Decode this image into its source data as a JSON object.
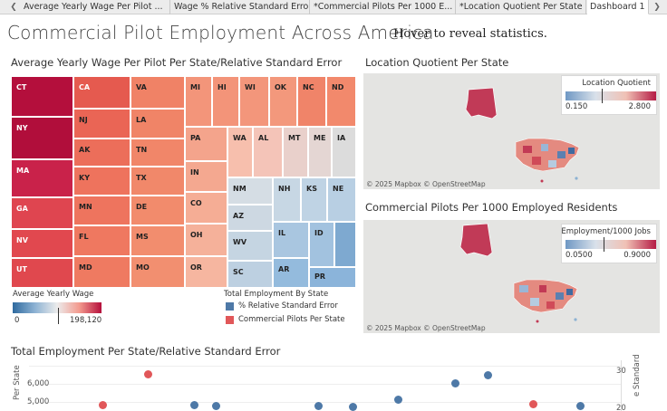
{
  "tabs": [
    {
      "label": "Average Yearly Wage Per Pilot ...",
      "active": false
    },
    {
      "label": "Wage % Relative Standard Error",
      "active": false
    },
    {
      "label": "*Commercial Pilots Per 1000 E...",
      "active": false
    },
    {
      "label": "*Location Quotient Per State",
      "active": false
    },
    {
      "label": "Dashboard 1",
      "active": true
    }
  ],
  "title": "Commercial Pilot Employment Across America",
  "hover_note": "Hover to reveal statistics.",
  "treemap": {
    "title": "Average Yearly Wage Per Pilot Per State/Relative Standard Error",
    "cells": [
      "CT",
      "NY",
      "MA",
      "GA",
      "NV",
      "UT",
      "CA",
      "NJ",
      "AK",
      "KY",
      "MN",
      "FL",
      "MD",
      "VA",
      "LA",
      "TN",
      "TX",
      "DE",
      "MS",
      "MO",
      "MI",
      "HI",
      "WI",
      "OK",
      "NC",
      "ND",
      "PA",
      "IN",
      "CO",
      "OH",
      "OR",
      "WA",
      "AL",
      "MT",
      "ME",
      "IA",
      "NM",
      "NH",
      "KS",
      "NE",
      "AZ",
      "WV",
      "SC",
      "IL",
      "ID",
      "AR",
      "PR"
    ]
  },
  "wage_legend": {
    "title": "Average Yearly Wage",
    "min": "0",
    "max": "198,120"
  },
  "employment_legend": {
    "title": "Total Employment By State",
    "items": [
      {
        "label": "% Relative Standard Error",
        "color": "#4e79a7"
      },
      {
        "label": "Commercial Pilots Per State",
        "color": "#e15759"
      }
    ]
  },
  "lq_map": {
    "title": "Location Quotient Per State",
    "legend_title": "Location Quotient",
    "min": "0.150",
    "max": "2.800",
    "credit": "© 2025 Mapbox  © OpenStreetMap"
  },
  "cp_map": {
    "title": "Commercial Pilots Per 1000 Employed Residents",
    "legend_title": "Employment/1000 Jobs",
    "min": "0.0500",
    "max": "0.9000",
    "credit": "© 2025 Mapbox  © OpenStreetMap"
  },
  "scatter": {
    "title": "Total Employment Per State/Relative Standard Error",
    "left_axis_label": "Per State",
    "right_axis_label": "e Standard",
    "left_ticks": [
      "6,000",
      "5,000"
    ],
    "right_ticks": [
      "30",
      "20"
    ]
  },
  "chart_data": {
    "type": "scatter",
    "title": "Total Employment Per State/Relative Standard Error",
    "ylabel": "Per State",
    "y2label": "e Standard",
    "y_ticks": [
      5000,
      6000
    ],
    "y2_ticks": [
      20,
      30
    ],
    "series": [
      {
        "name": "Commercial Pilots Per State",
        "color": "#e15759",
        "values": [
          4850,
          6550,
          4900
        ]
      },
      {
        "name": "% Relative Standard Error",
        "color": "#4e79a7",
        "values": [
          4850,
          4800,
          4800,
          4750,
          5150,
          6050,
          6500,
          4800
        ]
      }
    ]
  }
}
